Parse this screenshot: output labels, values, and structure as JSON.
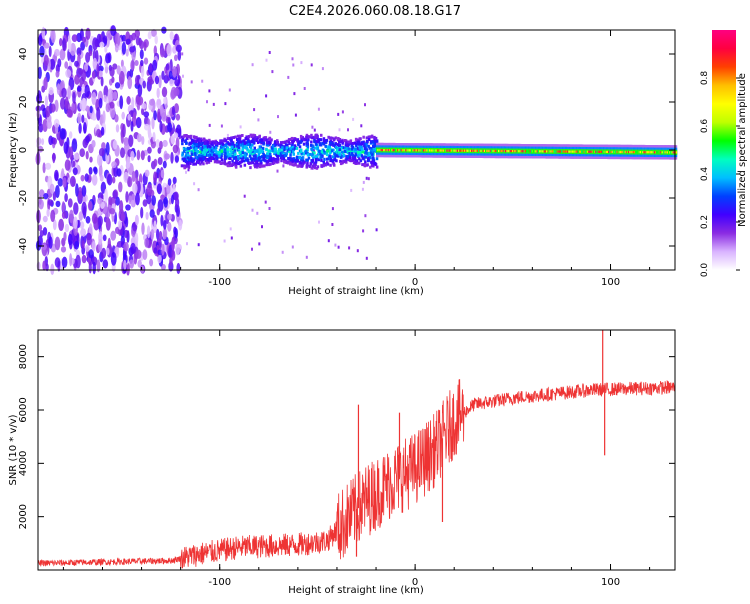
{
  "title": "C2E4.2026.060.08.18.G17",
  "chart_data": [
    {
      "type": "heatmap",
      "xlabel": "Height of straight line (km)",
      "ylabel": "Frequency (Hz)",
      "xlim": [
        -193,
        133
      ],
      "ylim": [
        -50,
        50
      ],
      "xticks": [
        -100,
        0,
        100
      ],
      "yticks": [
        -40,
        -20,
        0,
        20,
        40
      ],
      "colorbar": {
        "label": "Normalized spectral amplitude",
        "range": [
          0,
          1
        ],
        "ticks": [
          "0.0",
          "0.2",
          "0.4",
          "0.6",
          "0.8"
        ],
        "colors": [
          "#ffffff",
          "#d9b3ff",
          "#8a2be2",
          "#4000ff",
          "#0040ff",
          "#00bfff",
          "#00ffbf",
          "#00ff00",
          "#bfff00",
          "#ffff00",
          "#ffbf00",
          "#ff4000",
          "#ff0040",
          "#ff0080"
        ]
      },
      "regions": [
        {
          "x_range": [
            -193,
            -120
          ],
          "description": "noise",
          "freq_spread": 50,
          "amplitude": [
            0.05,
            0.25
          ]
        },
        {
          "x_range": [
            -120,
            -20
          ],
          "description": "widening signal",
          "freq_spread": 7,
          "amplitude": [
            0.15,
            0.45
          ]
        },
        {
          "x_range": [
            -20,
            133
          ],
          "description": "coherent carrier",
          "freq_spread": 3,
          "amplitude": [
            0.5,
            0.95
          ],
          "center_drift": [
            0,
            -1
          ]
        }
      ]
    },
    {
      "type": "line",
      "xlabel": "Height of straight line (km)",
      "ylabel": "SNR (10 * v/v)",
      "xlim": [
        -193,
        133
      ],
      "ylim": [
        0,
        9000
      ],
      "xticks": [
        -100,
        0,
        100
      ],
      "yticks": [
        2000,
        4000,
        6000,
        8000
      ],
      "color": "#ee3333",
      "trend": [
        {
          "x": -193,
          "y": 250
        },
        {
          "x": -160,
          "y": 300
        },
        {
          "x": -125,
          "y": 350
        },
        {
          "x": -110,
          "y": 600
        },
        {
          "x": -90,
          "y": 850
        },
        {
          "x": -60,
          "y": 950
        },
        {
          "x": -45,
          "y": 1100
        },
        {
          "x": -35,
          "y": 1900
        },
        {
          "x": -25,
          "y": 2600
        },
        {
          "x": -10,
          "y": 3400
        },
        {
          "x": 0,
          "y": 3800
        },
        {
          "x": 10,
          "y": 4500
        },
        {
          "x": 20,
          "y": 5600
        },
        {
          "x": 30,
          "y": 6200
        },
        {
          "x": 50,
          "y": 6450
        },
        {
          "x": 70,
          "y": 6600
        },
        {
          "x": 90,
          "y": 6750
        },
        {
          "x": 110,
          "y": 6800
        },
        {
          "x": 133,
          "y": 6850
        }
      ],
      "noise": [
        {
          "x_range": [
            -193,
            -120
          ],
          "amp": 120
        },
        {
          "x_range": [
            -120,
            -40
          ],
          "amp": 450
        },
        {
          "x_range": [
            -40,
            25
          ],
          "amp": 1400
        },
        {
          "x_range": [
            25,
            133
          ],
          "amp": 260
        }
      ],
      "spikes": [
        {
          "x": -29,
          "y": 6200
        },
        {
          "x": -30,
          "y": 500
        },
        {
          "x": -8,
          "y": 5900
        },
        {
          "x": 14,
          "y": 1800
        },
        {
          "x": 96,
          "y": 9000
        },
        {
          "x": 97,
          "y": 4300
        }
      ]
    }
  ]
}
